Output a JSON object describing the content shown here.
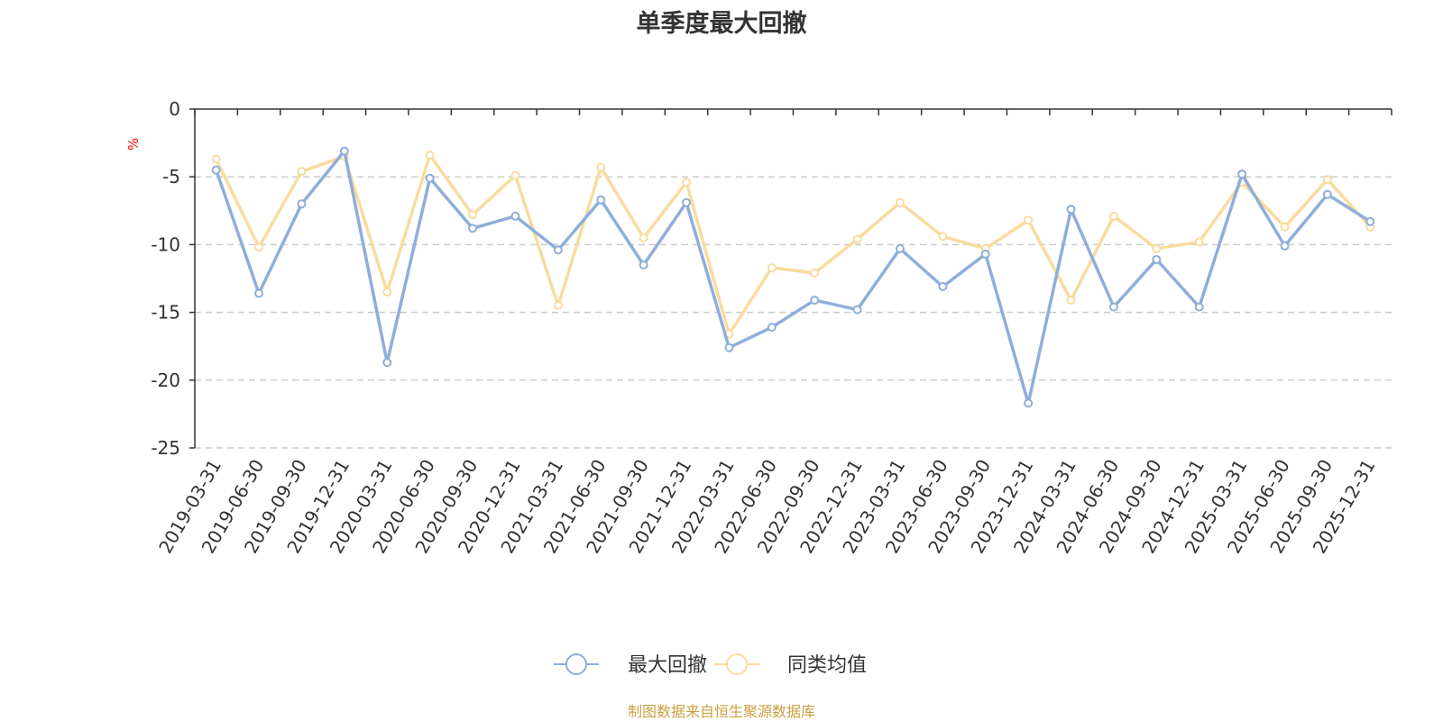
{
  "chart_data": {
    "type": "line",
    "title": "单季度最大回撤",
    "ylabel": "%",
    "xlabel": "",
    "ylim": [
      -25,
      0
    ],
    "yticks": [
      0,
      -5,
      -10,
      -15,
      -20,
      -25
    ],
    "grid": true,
    "legend_position": "bottom",
    "categories": [
      "2019-03-31",
      "2019-06-30",
      "2019-09-30",
      "2019-12-31",
      "2020-03-31",
      "2020-06-30",
      "2020-09-30",
      "2020-12-31",
      "2021-03-31",
      "2021-06-30",
      "2021-09-30",
      "2021-12-31",
      "2022-03-31",
      "2022-06-30",
      "2022-09-30",
      "2022-12-31",
      "2023-03-31",
      "2023-06-30",
      "2023-09-30",
      "2023-12-31",
      "2024-03-31",
      "2024-06-30",
      "2024-09-30",
      "2024-12-31",
      "2025-03-31",
      "2025-06-30",
      "2025-09-30",
      "2025-12-31"
    ],
    "series": [
      {
        "name": "最大回撤",
        "color": "#8eaedb",
        "values": [
          -4.5,
          -13.6,
          -7.0,
          -3.1,
          -18.7,
          -5.1,
          -8.8,
          -7.9,
          -10.4,
          -6.7,
          -11.5,
          -6.9,
          -17.6,
          -16.1,
          -14.1,
          -14.8,
          -10.3,
          -13.1,
          -10.7,
          -21.7,
          -7.4,
          -14.6,
          -11.1,
          -14.6,
          -4.8,
          -10.1,
          -6.3,
          -8.3
        ]
      },
      {
        "name": "同类均值",
        "color": "#fadb9e",
        "values": [
          -3.7,
          -10.2,
          -4.6,
          -3.5,
          -13.5,
          -3.4,
          -7.8,
          -4.9,
          -14.5,
          -4.3,
          -9.5,
          -5.4,
          -16.6,
          -11.7,
          -12.1,
          -9.6,
          -6.9,
          -9.4,
          -10.3,
          -8.2,
          -14.1,
          -7.9,
          -10.3,
          -9.8,
          -5.4,
          -8.7,
          -5.2,
          -8.7
        ]
      }
    ]
  },
  "footer": {
    "source_text": "制图数据来自恒生聚源数据库",
    "color": "#c9a042"
  },
  "colors": {
    "axis": "#333333",
    "grid": "#cccccc",
    "ylabel": "#ff0000"
  }
}
